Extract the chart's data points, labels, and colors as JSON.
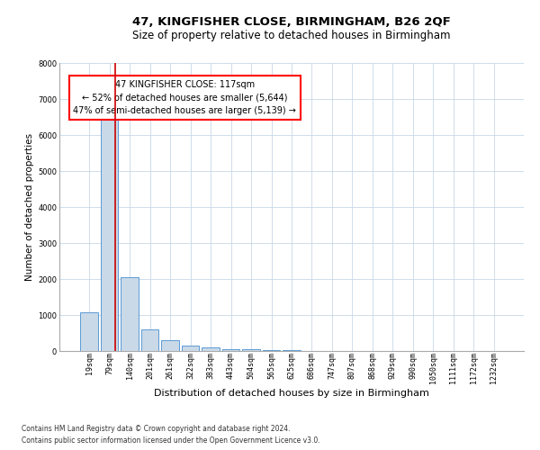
{
  "title1": "47, KINGFISHER CLOSE, BIRMINGHAM, B26 2QF",
  "title2": "Size of property relative to detached houses in Birmingham",
  "xlabel": "Distribution of detached houses by size in Birmingham",
  "ylabel": "Number of detached properties",
  "footnote1": "Contains HM Land Registry data © Crown copyright and database right 2024.",
  "footnote2": "Contains public sector information licensed under the Open Government Licence v3.0.",
  "annotation_line1": "47 KINGFISHER CLOSE: 117sqm",
  "annotation_line2": "← 52% of detached houses are smaller (5,644)",
  "annotation_line3": "47% of semi-detached houses are larger (5,139) →",
  "bar_color": "#c9d9e8",
  "bar_edge_color": "#5b9bd5",
  "redline_color": "#cc0000",
  "grid_color": "#c8d8e8",
  "background_color": "#ffffff",
  "categories": [
    "19sqm",
    "79sqm",
    "140sqm",
    "201sqm",
    "261sqm",
    "322sqm",
    "383sqm",
    "443sqm",
    "504sqm",
    "565sqm",
    "625sqm",
    "686sqm",
    "747sqm",
    "807sqm",
    "868sqm",
    "929sqm",
    "990sqm",
    "1050sqm",
    "1111sqm",
    "1172sqm",
    "1232sqm"
  ],
  "values": [
    1070,
    6500,
    2050,
    600,
    290,
    140,
    90,
    60,
    40,
    25,
    15,
    8,
    4,
    2,
    1,
    1,
    0,
    0,
    0,
    0,
    0
  ],
  "ylim": [
    0,
    8000
  ],
  "yticks": [
    0,
    1000,
    2000,
    3000,
    4000,
    5000,
    6000,
    7000,
    8000
  ],
  "redline_x": 1.28,
  "title1_fontsize": 9.5,
  "title2_fontsize": 8.5,
  "annotation_fontsize": 7,
  "tick_fontsize": 6,
  "ylabel_fontsize": 7.5,
  "xlabel_fontsize": 8,
  "footnote_fontsize": 5.5
}
